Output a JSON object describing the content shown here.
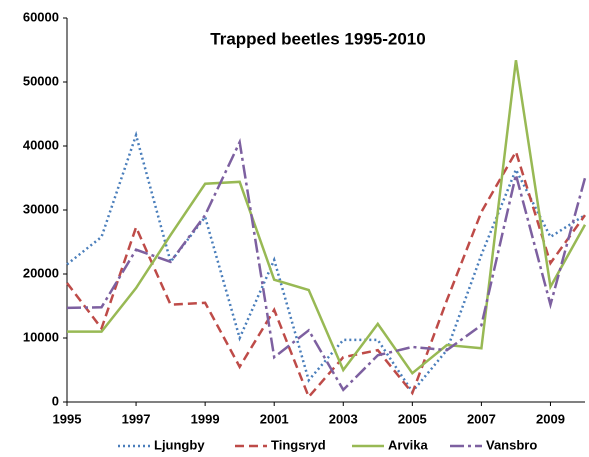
{
  "chart_data": {
    "type": "line",
    "title": "Trapped beetles 1995-2010",
    "x": [
      1995,
      1996,
      1997,
      1998,
      1999,
      2000,
      2001,
      2002,
      2003,
      2004,
      2005,
      2006,
      2007,
      2008,
      2009,
      2010
    ],
    "xlim": [
      1995,
      2010
    ],
    "xticks": [
      1995,
      1997,
      1999,
      2001,
      2003,
      2005,
      2007,
      2009
    ],
    "ylim": [
      0,
      60000
    ],
    "yticks": [
      0,
      10000,
      20000,
      30000,
      40000,
      50000,
      60000
    ],
    "grid": false,
    "legend": "bottom",
    "series": [
      {
        "name": "Ljungby",
        "color": "#4a7ebb",
        "style": "dotted",
        "values": [
          21500,
          25800,
          41700,
          21900,
          28900,
          10000,
          22200,
          3400,
          9700,
          9700,
          1600,
          8100,
          23000,
          36300,
          25800,
          29200
        ]
      },
      {
        "name": "Tingsryd",
        "color": "#be4b48",
        "style": "dashed",
        "values": [
          18600,
          11500,
          27300,
          15200,
          15500,
          5500,
          14400,
          800,
          7000,
          8100,
          1400,
          15900,
          29700,
          39100,
          21700,
          29200
        ]
      },
      {
        "name": "Arvika",
        "color": "#98b954",
        "style": "solid",
        "values": [
          11000,
          11000,
          17800,
          26100,
          34100,
          34400,
          19100,
          17500,
          5000,
          12200,
          4500,
          8900,
          8400,
          53400,
          18000,
          27700
        ]
      },
      {
        "name": "Vansbro",
        "color": "#7d60a0",
        "style": "dashdot",
        "values": [
          14700,
          14800,
          23800,
          21900,
          29200,
          40600,
          7000,
          11200,
          1900,
          7300,
          8600,
          8100,
          12000,
          35500,
          15200,
          35000
        ]
      }
    ]
  }
}
